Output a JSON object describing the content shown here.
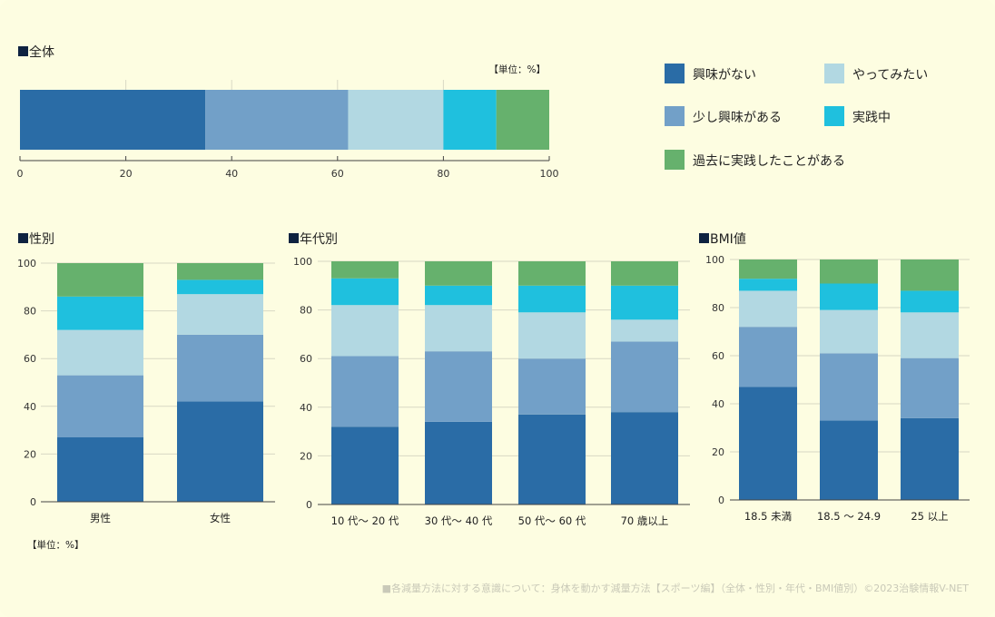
{
  "colors": {
    "no_interest": "#2a6ca6",
    "some_interest": "#72a0c8",
    "want_to_try": "#b2d8e2",
    "practicing": "#1fc0de",
    "practiced_before": "#66b16d",
    "grid": "#d8d8c4",
    "axis": "#444444",
    "square": "#0e2240"
  },
  "legend": [
    {
      "key": "no_interest",
      "label": "興味がない"
    },
    {
      "key": "want_to_try",
      "label": "やってみたい"
    },
    {
      "key": "some_interest",
      "label": "少し興味がある"
    },
    {
      "key": "practicing",
      "label": "実践中"
    },
    {
      "key": "practiced_before",
      "label": "過去に実践したことがある"
    }
  ],
  "unit_label": "【単位：%】",
  "footer": "■各減量方法に対する意識について：身体を動かす減量方法【スポーツ編】（全体・性別・年代・BMI値別）©2023治験情報V-NET",
  "chart_data": [
    {
      "id": "overall",
      "type": "bar",
      "orientation": "horizontal",
      "stacked": true,
      "title": "■全体",
      "unit": "【単位：%】",
      "xlim": [
        0,
        100
      ],
      "ticks": [
        0,
        20,
        40,
        60,
        80,
        100
      ],
      "categories": [
        "全体"
      ],
      "series": [
        {
          "name": "興味がない",
          "key": "no_interest",
          "values": [
            35
          ]
        },
        {
          "name": "少し興味がある",
          "key": "some_interest",
          "values": [
            27
          ]
        },
        {
          "name": "やってみたい",
          "key": "want_to_try",
          "values": [
            18
          ]
        },
        {
          "name": "実践中",
          "key": "practicing",
          "values": [
            10
          ]
        },
        {
          "name": "過去に実践したことがある",
          "key": "practiced_before",
          "values": [
            10
          ]
        }
      ]
    },
    {
      "id": "gender",
      "type": "bar",
      "stacked": true,
      "title": "■性別",
      "unit": "【単位：%】",
      "ylim": [
        0,
        100
      ],
      "ticks": [
        0,
        20,
        40,
        60,
        80,
        100
      ],
      "categories": [
        "男性",
        "女性"
      ],
      "series": [
        {
          "name": "興味がない",
          "key": "no_interest",
          "values": [
            27,
            42
          ]
        },
        {
          "name": "少し興味がある",
          "key": "some_interest",
          "values": [
            26,
            28
          ]
        },
        {
          "name": "やってみたい",
          "key": "want_to_try",
          "values": [
            19,
            17
          ]
        },
        {
          "name": "実践中",
          "key": "practicing",
          "values": [
            14,
            6
          ]
        },
        {
          "name": "過去に実践したことがある",
          "key": "practiced_before",
          "values": [
            14,
            7
          ]
        }
      ]
    },
    {
      "id": "age",
      "type": "bar",
      "stacked": true,
      "title": "■年代別",
      "ylim": [
        0,
        100
      ],
      "ticks": [
        0,
        20,
        40,
        60,
        80,
        100
      ],
      "categories": [
        "10 代～ 20 代",
        "30 代～ 40 代",
        "50 代～ 60 代",
        "70 歳以上"
      ],
      "series": [
        {
          "name": "興味がない",
          "key": "no_interest",
          "values": [
            32,
            34,
            37,
            38
          ]
        },
        {
          "name": "少し興味がある",
          "key": "some_interest",
          "values": [
            29,
            29,
            23,
            29
          ]
        },
        {
          "name": "やってみたい",
          "key": "want_to_try",
          "values": [
            21,
            19,
            19,
            9
          ]
        },
        {
          "name": "実践中",
          "key": "practicing",
          "values": [
            11,
            8,
            11,
            14
          ]
        },
        {
          "name": "過去に実践したことがある",
          "key": "practiced_before",
          "values": [
            7,
            10,
            10,
            10
          ]
        }
      ]
    },
    {
      "id": "bmi",
      "type": "bar",
      "stacked": true,
      "title": "■BMI値",
      "ylim": [
        0,
        100
      ],
      "ticks": [
        0,
        20,
        40,
        60,
        80,
        100
      ],
      "categories": [
        "18.5 未満",
        "18.5 ～ 24.9",
        "25 以上"
      ],
      "series": [
        {
          "name": "興味がない",
          "key": "no_interest",
          "values": [
            47,
            33,
            34
          ]
        },
        {
          "name": "少し興味がある",
          "key": "some_interest",
          "values": [
            25,
            28,
            25
          ]
        },
        {
          "name": "やってみたい",
          "key": "want_to_try",
          "values": [
            15,
            18,
            19
          ]
        },
        {
          "name": "実践中",
          "key": "practicing",
          "values": [
            5,
            11,
            9
          ]
        },
        {
          "name": "過去に実践したことがある",
          "key": "practiced_before",
          "values": [
            8,
            10,
            13
          ]
        }
      ]
    }
  ]
}
